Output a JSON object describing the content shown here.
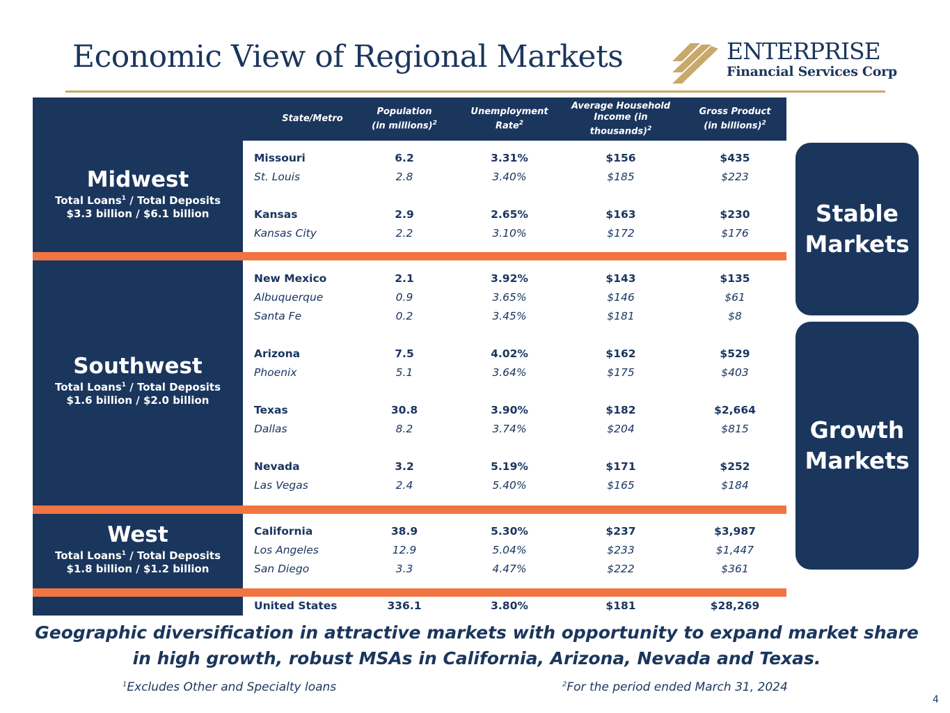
{
  "title": "Economic View of Regional Markets",
  "logo": {
    "name": "ENTERPRISE",
    "subtitle": "Financial Services Corp"
  },
  "colors": {
    "navy": "#1b365d",
    "orange": "#f07542",
    "gold": "#c8a96a"
  },
  "table": {
    "headers": {
      "state": "State/Metro",
      "population": "Population (in millions)",
      "population_sup": "2",
      "unemployment": "Unemployment Rate",
      "unemployment_sup": "2",
      "income": "Average Household Income (in thousands)",
      "income_sup": "2",
      "gdp": "Gross Product (in billions)",
      "gdp_sup": "2"
    },
    "rows": [
      {
        "name": "Missouri",
        "pop": "6.2",
        "unemp": "3.31%",
        "income": "$156",
        "gdp": "$435",
        "kind": "state"
      },
      {
        "name": "St. Louis",
        "pop": "2.8",
        "unemp": "3.40%",
        "income": "$185",
        "gdp": "$223",
        "kind": "metro"
      },
      {
        "name": "Kansas",
        "pop": "2.9",
        "unemp": "2.65%",
        "income": "$163",
        "gdp": "$230",
        "kind": "state"
      },
      {
        "name": "Kansas City",
        "pop": "2.2",
        "unemp": "3.10%",
        "income": "$172",
        "gdp": "$176",
        "kind": "metro"
      },
      {
        "name": "New Mexico",
        "pop": "2.1",
        "unemp": "3.92%",
        "income": "$143",
        "gdp": "$135",
        "kind": "state"
      },
      {
        "name": "Albuquerque",
        "pop": "0.9",
        "unemp": "3.65%",
        "income": "$146",
        "gdp": "$61",
        "kind": "metro"
      },
      {
        "name": "Santa Fe",
        "pop": "0.2",
        "unemp": "3.45%",
        "income": "$181",
        "gdp": "$8",
        "kind": "metro"
      },
      {
        "name": "Arizona",
        "pop": "7.5",
        "unemp": "4.02%",
        "income": "$162",
        "gdp": "$529",
        "kind": "state"
      },
      {
        "name": "Phoenix",
        "pop": "5.1",
        "unemp": "3.64%",
        "income": "$175",
        "gdp": "$403",
        "kind": "metro"
      },
      {
        "name": "Texas",
        "pop": "30.8",
        "unemp": "3.90%",
        "income": "$182",
        "gdp": "$2,664",
        "kind": "state"
      },
      {
        "name": "Dallas",
        "pop": "8.2",
        "unemp": "3.74%",
        "income": "$204",
        "gdp": "$815",
        "kind": "metro"
      },
      {
        "name": "Nevada",
        "pop": "3.2",
        "unemp": "5.19%",
        "income": "$171",
        "gdp": "$252",
        "kind": "state"
      },
      {
        "name": "Las Vegas",
        "pop": "2.4",
        "unemp": "5.40%",
        "income": "$165",
        "gdp": "$184",
        "kind": "metro"
      },
      {
        "name": "California",
        "pop": "38.9",
        "unemp": "5.30%",
        "income": "$237",
        "gdp": "$3,987",
        "kind": "state"
      },
      {
        "name": "Los Angeles",
        "pop": "12.9",
        "unemp": "5.04%",
        "income": "$233",
        "gdp": "$1,447",
        "kind": "metro"
      },
      {
        "name": "San Diego",
        "pop": "3.3",
        "unemp": "4.47%",
        "income": "$222",
        "gdp": "$361",
        "kind": "metro"
      },
      {
        "name": "United States",
        "pop": "336.1",
        "unemp": "3.80%",
        "income": "$181",
        "gdp": "$28,269",
        "kind": "state"
      }
    ]
  },
  "regions": {
    "midwest": {
      "name": "Midwest",
      "line1": "Total Loans",
      "line1_sup": "1",
      "line1_end": " / Total Deposits",
      "line2": "$3.3 billion / $6.1 billion"
    },
    "southwest": {
      "name": "Southwest",
      "line1": "Total Loans",
      "line1_sup": "1",
      "line1_end": " / Total Deposits",
      "line2": "$1.6 billion / $2.0 billion"
    },
    "west": {
      "name": "West",
      "line1": "Total Loans",
      "line1_sup": "1",
      "line1_end": " / Total Deposits",
      "line2": "$1.8 billion / $1.2 billion"
    }
  },
  "markets": {
    "stable": "Stable Markets",
    "growth": "Growth Markets"
  },
  "tagline": "Geographic diversification in attractive markets with opportunity to expand market share in high growth, robust MSAs in California, Arizona, Nevada and Texas.",
  "footnotes": {
    "fn1_sup": "1",
    "fn1": "Excludes Other and Specialty loans",
    "fn2_sup": "2",
    "fn2": "For the period ended March 31, 2024"
  },
  "page_number": "4"
}
